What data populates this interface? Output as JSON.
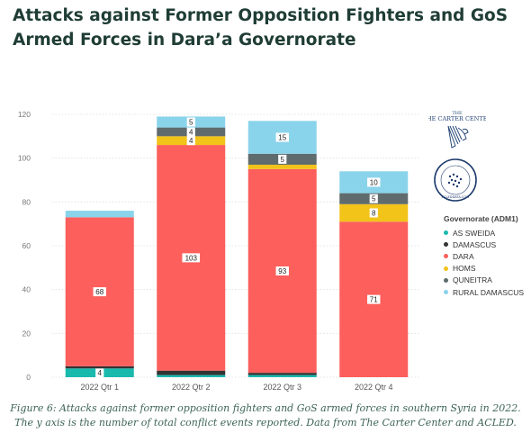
{
  "title": "Attacks against Former Opposition Fighters and GoS Armed Forces in Dara’a Governorate",
  "caption": "Figure 6: Attacks against former opposition fighters and GoS armed forces in southern Syria in 2022. The y axis is the number of total conflict events reported. Data from The Carter Center and ACLED.",
  "logos": {
    "carter_center": "THE CARTER CENTER",
    "acled": "ACLEDDATA.COM"
  },
  "legend_title": "Governorate (ADM1)",
  "chart_data": {
    "type": "bar",
    "stacked": true,
    "categories": [
      "2022 Qtr 1",
      "2022 Qtr 2",
      "2022 Qtr 3",
      "2022 Qtr 4"
    ],
    "ylim": [
      0,
      120
    ],
    "yticks": [
      0,
      20,
      40,
      60,
      80,
      100,
      120
    ],
    "grid": true,
    "legend_position": "right",
    "series": [
      {
        "name": "AS SWEIDA",
        "color": "#1ab9ad",
        "values": [
          4,
          1,
          1,
          0
        ],
        "labels": [
          "4",
          "",
          "",
          ""
        ]
      },
      {
        "name": "DAMASCUS",
        "color": "#333333",
        "values": [
          1,
          2,
          1,
          0
        ],
        "labels": [
          "",
          "",
          "",
          ""
        ]
      },
      {
        "name": "DARA",
        "color": "#fc5f5c",
        "values": [
          68,
          103,
          93,
          71
        ],
        "labels": [
          "68",
          "103",
          "93",
          "71"
        ]
      },
      {
        "name": "HOMS",
        "color": "#f2c318",
        "values": [
          0,
          4,
          2,
          8
        ],
        "labels": [
          "",
          "4",
          "",
          "8"
        ]
      },
      {
        "name": "QUNEITRA",
        "color": "#5f6b6d",
        "values": [
          0,
          4,
          5,
          5
        ],
        "labels": [
          "",
          "4",
          "5",
          "5"
        ]
      },
      {
        "name": "RURAL DAMASCUS",
        "color": "#8ad4eb",
        "values": [
          3,
          5,
          15,
          10
        ],
        "labels": [
          "",
          "5",
          "15",
          "10"
        ]
      }
    ]
  }
}
